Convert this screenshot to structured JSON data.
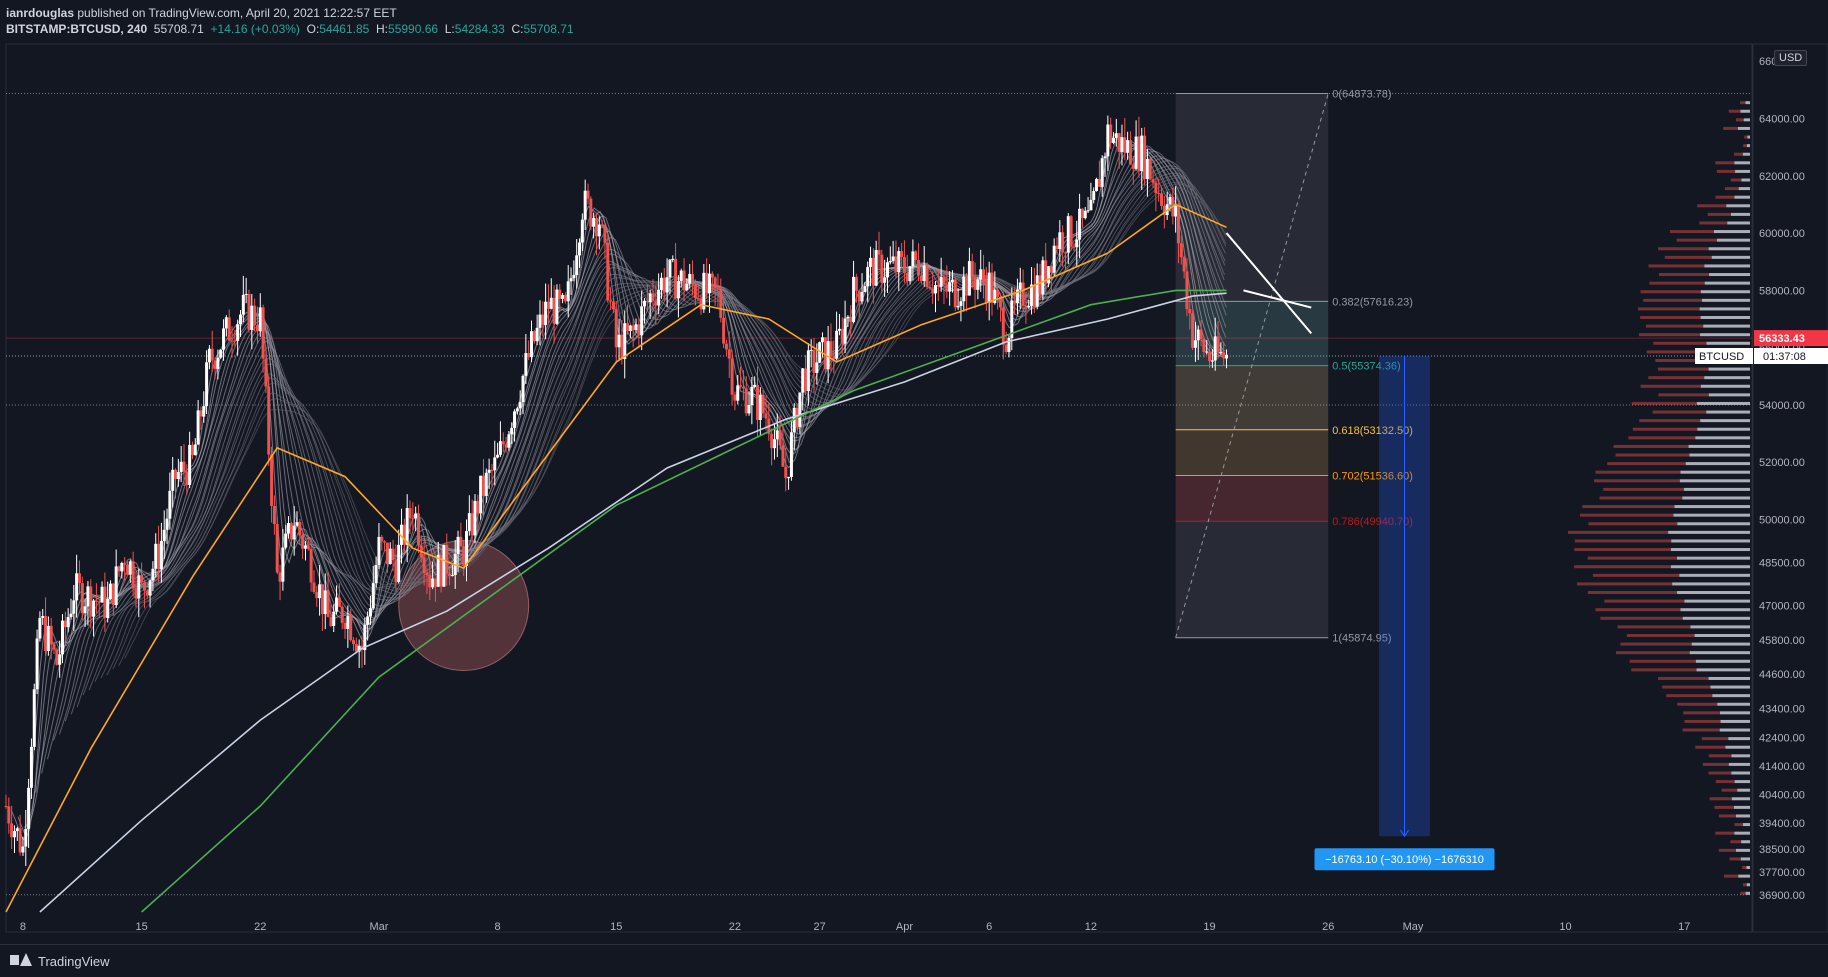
{
  "header": {
    "author": "ianrdouglas",
    "published": "published on TradingView.com, April 20, 2021 12:22:57 EET",
    "symbol": "BITSTAMP:BTCUSD, 240",
    "last": "55708.71",
    "change": "+14.16 (+0.03%)",
    "o_label": "O:",
    "o_value": "54461.85",
    "h_label": "H:",
    "h_value": "55990.66",
    "l_label": "L:",
    "l_value": "54284.33",
    "c_label": "C:",
    "c_value": "55708.71"
  },
  "currency": "USD",
  "footer": {
    "brand": "TradingView"
  },
  "chart_data": {
    "type": "candlestick",
    "price_axis": {
      "range": [
        36300,
        66600
      ],
      "ticks": [
        66000,
        64000,
        62000,
        60000,
        58000,
        56000,
        54000,
        52000,
        50000,
        48500,
        47000,
        45800,
        44600,
        43400,
        42400,
        41400,
        40400,
        39400,
        38500,
        37700,
        36900
      ],
      "tick_labels": [
        "66000.00",
        "64000.00",
        "62000.00",
        "60000.00",
        "58000.00",
        "56000.00",
        "54000.00",
        "52000.00",
        "50000.00",
        "48500.00",
        "47000.00",
        "45800.00",
        "44600.00",
        "43400.00",
        "42400.00",
        "41400.00",
        "40400.00",
        "39400.00",
        "38500.00",
        "37700.00",
        "36900.00"
      ]
    },
    "time_axis": {
      "start": "2021-02-07",
      "end": "2021-05-21",
      "ticks": [
        {
          "date": "2021-02-08",
          "label": "8"
        },
        {
          "date": "2021-02-15",
          "label": "15"
        },
        {
          "date": "2021-02-22",
          "label": "22"
        },
        {
          "date": "2021-03-01",
          "label": "Mar"
        },
        {
          "date": "2021-03-08",
          "label": "8"
        },
        {
          "date": "2021-03-15",
          "label": "15"
        },
        {
          "date": "2021-03-22",
          "label": "22"
        },
        {
          "date": "2021-03-27",
          "label": "27"
        },
        {
          "date": "2021-04-01",
          "label": "Apr"
        },
        {
          "date": "2021-04-06",
          "label": "6"
        },
        {
          "date": "2021-04-12",
          "label": "12"
        },
        {
          "date": "2021-04-19",
          "label": "19"
        },
        {
          "date": "2021-04-26",
          "label": "26"
        },
        {
          "date": "2021-05-01",
          "label": "May"
        },
        {
          "date": "2021-05-10",
          "label": "10"
        },
        {
          "date": "2021-05-17",
          "label": "17"
        }
      ]
    },
    "price_path": [
      [
        "2021-02-07",
        40000
      ],
      [
        "2021-02-08",
        38500
      ],
      [
        "2021-02-09",
        46500
      ],
      [
        "2021-02-10",
        45000
      ],
      [
        "2021-02-11",
        47500
      ],
      [
        "2021-02-12",
        47300
      ],
      [
        "2021-02-13",
        47000
      ],
      [
        "2021-02-14",
        48800
      ],
      [
        "2021-02-15",
        47500
      ],
      [
        "2021-02-16",
        48800
      ],
      [
        "2021-02-17",
        51500
      ],
      [
        "2021-02-18",
        52000
      ],
      [
        "2021-02-19",
        55500
      ],
      [
        "2021-02-20",
        56500
      ],
      [
        "2021-02-21",
        57300
      ],
      [
        "2021-02-22",
        57000
      ],
      [
        "2021-02-23",
        48000
      ],
      [
        "2021-02-24",
        50000
      ],
      [
        "2021-02-25",
        48500
      ],
      [
        "2021-02-26",
        46500
      ],
      [
        "2021-02-27",
        46800
      ],
      [
        "2021-02-28",
        45500
      ],
      [
        "2021-03-01",
        49000
      ],
      [
        "2021-03-02",
        48500
      ],
      [
        "2021-03-03",
        50500
      ],
      [
        "2021-03-04",
        48000
      ],
      [
        "2021-03-05",
        48500
      ],
      [
        "2021-03-06",
        48900
      ],
      [
        "2021-03-07",
        50900
      ],
      [
        "2021-03-08",
        52000
      ],
      [
        "2021-03-09",
        54000
      ],
      [
        "2021-03-10",
        56000
      ],
      [
        "2021-03-11",
        57500
      ],
      [
        "2021-03-12",
        57200
      ],
      [
        "2021-03-13",
        61000
      ],
      [
        "2021-03-14",
        60500
      ],
      [
        "2021-03-15",
        56000
      ],
      [
        "2021-03-16",
        56500
      ],
      [
        "2021-03-17",
        57800
      ],
      [
        "2021-03-18",
        58500
      ],
      [
        "2021-03-19",
        58300
      ],
      [
        "2021-03-20",
        58000
      ],
      [
        "2021-03-21",
        57800
      ],
      [
        "2021-03-22",
        54500
      ],
      [
        "2021-03-23",
        54300
      ],
      [
        "2021-03-24",
        53500
      ],
      [
        "2021-03-25",
        51500
      ],
      [
        "2021-03-26",
        55000
      ],
      [
        "2021-03-27",
        55700
      ],
      [
        "2021-03-28",
        56000
      ],
      [
        "2021-03-29",
        57900
      ],
      [
        "2021-03-30",
        58700
      ],
      [
        "2021-03-31",
        58800
      ],
      [
        "2021-04-01",
        58800
      ],
      [
        "2021-04-02",
        59000
      ],
      [
        "2021-04-03",
        58000
      ],
      [
        "2021-04-04",
        58000
      ],
      [
        "2021-04-05",
        58500
      ],
      [
        "2021-04-06",
        58200
      ],
      [
        "2021-04-07",
        56500
      ],
      [
        "2021-04-08",
        57900
      ],
      [
        "2021-04-09",
        58200
      ],
      [
        "2021-04-10",
        59800
      ],
      [
        "2021-04-11",
        60000
      ],
      [
        "2021-04-12",
        60500
      ],
      [
        "2021-04-13",
        63500
      ],
      [
        "2021-04-14",
        63000
      ],
      [
        "2021-04-15",
        62800
      ],
      [
        "2021-04-16",
        61500
      ],
      [
        "2021-04-17",
        60500
      ],
      [
        "2021-04-18",
        56500
      ],
      [
        "2021-04-19",
        55700
      ],
      [
        "2021-04-20",
        55708.71
      ]
    ],
    "moving_averages": [
      {
        "color": "#ffa726",
        "points": [
          [
            "2021-02-07",
            36300
          ],
          [
            "2021-02-12",
            42000
          ],
          [
            "2021-02-18",
            48000
          ],
          [
            "2021-02-23",
            52500
          ],
          [
            "2021-02-27",
            51500
          ],
          [
            "2021-03-03",
            49000
          ],
          [
            "2021-03-06",
            48300
          ],
          [
            "2021-03-10",
            51500
          ],
          [
            "2021-03-15",
            55500
          ],
          [
            "2021-03-20",
            57500
          ],
          [
            "2021-03-24",
            57000
          ],
          [
            "2021-03-28",
            55500
          ],
          [
            "2021-04-02",
            56800
          ],
          [
            "2021-04-08",
            58000
          ],
          [
            "2021-04-13",
            59300
          ],
          [
            "2021-04-17",
            61000
          ],
          [
            "2021-04-20",
            60200
          ]
        ]
      },
      {
        "color": "#c9d3e6",
        "points": [
          [
            "2021-02-09",
            36300
          ],
          [
            "2021-02-15",
            39500
          ],
          [
            "2021-02-22",
            43000
          ],
          [
            "2021-02-28",
            45500
          ],
          [
            "2021-03-05",
            46800
          ],
          [
            "2021-03-11",
            49000
          ],
          [
            "2021-03-18",
            51800
          ],
          [
            "2021-03-25",
            53500
          ],
          [
            "2021-04-01",
            54800
          ],
          [
            "2021-04-07",
            56200
          ],
          [
            "2021-04-13",
            57000
          ],
          [
            "2021-04-18",
            57800
          ],
          [
            "2021-04-20",
            57900
          ]
        ]
      },
      {
        "color": "#4caf50",
        "points": [
          [
            "2021-02-15",
            36300
          ],
          [
            "2021-02-22",
            40000
          ],
          [
            "2021-03-01",
            44500
          ],
          [
            "2021-03-08",
            47500
          ],
          [
            "2021-03-15",
            50500
          ],
          [
            "2021-03-22",
            52500
          ],
          [
            "2021-03-29",
            54500
          ],
          [
            "2021-04-05",
            56000
          ],
          [
            "2021-04-12",
            57500
          ],
          [
            "2021-04-17",
            58000
          ],
          [
            "2021-04-20",
            58000
          ]
        ]
      }
    ],
    "fibonacci": [
      {
        "ratio": "0",
        "price": 64873.78,
        "label": "0(64873.78)",
        "color": "#9598a1"
      },
      {
        "ratio": "0.382",
        "price": 57616.23,
        "label": "0.382(57616.23)",
        "color": "#9598a1"
      },
      {
        "ratio": "0.5",
        "price": 55374.36,
        "label": "0.5(55374.36)",
        "color": "#26a69a"
      },
      {
        "ratio": "0.618",
        "price": 53132.5,
        "label": "0.618(53132.50)",
        "color": "#f7c244"
      },
      {
        "ratio": "0.702",
        "price": 51536.6,
        "label": "0.702(51536.60)",
        "color": "#ff9800"
      },
      {
        "ratio": "0.786",
        "price": 49940.7,
        "label": "0.786(49940.70)",
        "color": "#b71c1c"
      },
      {
        "ratio": "1",
        "price": 45874.95,
        "label": "1(45874.95)",
        "color": "#9598a1"
      }
    ],
    "price_labels": [
      {
        "text": "56333.43",
        "price": 56333.43,
        "bg": "#f23645",
        "fg": "#ffffff"
      },
      {
        "text": "BTCUSD",
        "extra": "01:37:08",
        "price": 55708.71,
        "bg": "#ffffff",
        "fg": "#131722"
      }
    ],
    "measure": {
      "from_date": "2021-04-29",
      "to_date": "2021-05-02",
      "from_price": 55708.71,
      "to_price": 38945.61,
      "label": "−16763.10 (−30.10%) −1676310"
    },
    "circle": {
      "date": "2021-03-06",
      "price": 47000
    },
    "trendlines": [
      {
        "color": "#ffffff",
        "p1": [
          "2021-04-20",
          60000
        ],
        "p2": [
          "2021-04-25",
          56500
        ]
      },
      {
        "color": "#ffffff",
        "p1": [
          "2021-04-21",
          58000
        ],
        "p2": [
          "2021-04-25",
          57400
        ]
      }
    ],
    "volume_profile_note": ""
  }
}
